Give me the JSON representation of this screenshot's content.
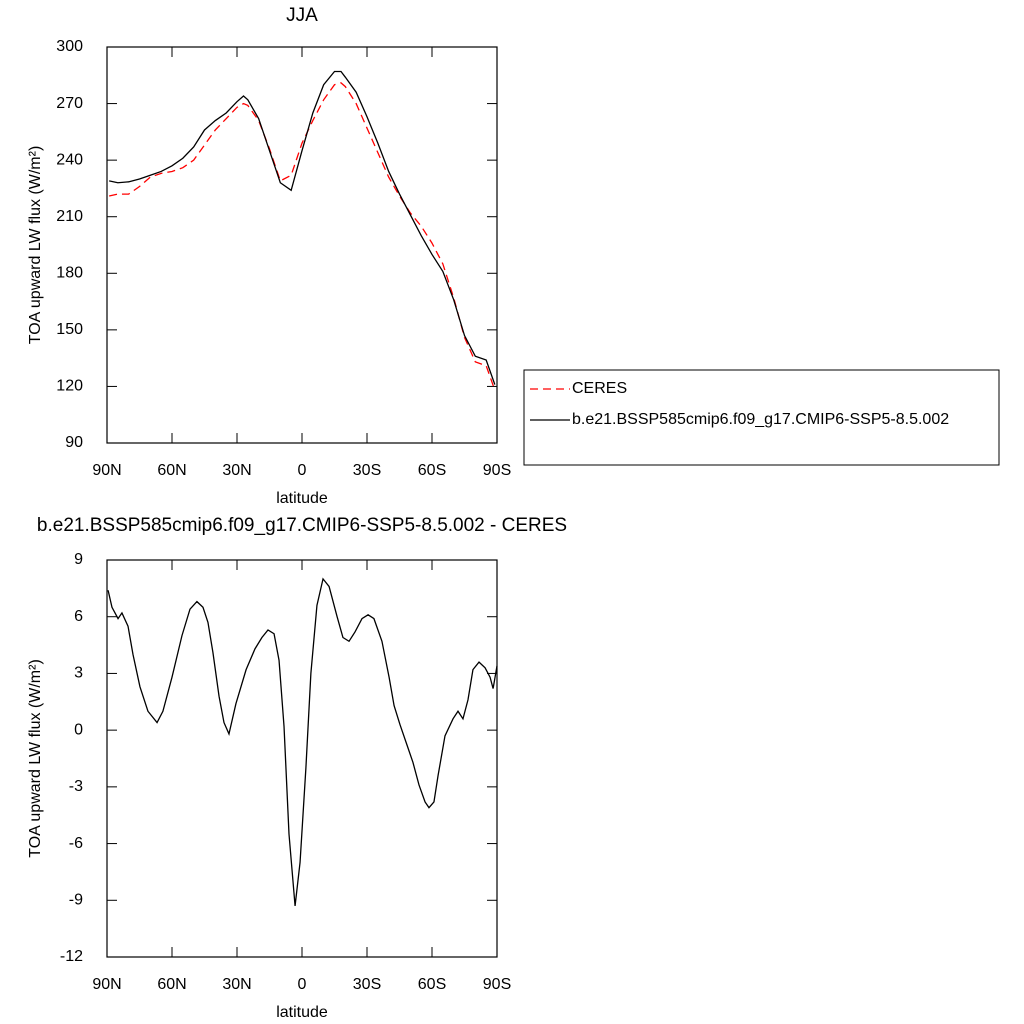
{
  "chart_data": [
    {
      "type": "line",
      "title": "JJA",
      "xlabel": "latitude",
      "ylabel": "TOA upward LW flux (W/m²)",
      "x": [
        89,
        85,
        80,
        75,
        70,
        65,
        60,
        55,
        50,
        45,
        40,
        35,
        30,
        27,
        25,
        20,
        15,
        10,
        5,
        0,
        -5,
        -10,
        -15,
        -18,
        -20,
        -25,
        -30,
        -35,
        -40,
        -45,
        -50,
        -55,
        -60,
        -65,
        -70,
        -75,
        -80,
        -85,
        -89
      ],
      "series": [
        {
          "name": "CERES",
          "color": "#ff0000",
          "dashed": true,
          "values": [
            221,
            222,
            222,
            226,
            231,
            233,
            234,
            236,
            240,
            248,
            256,
            262,
            268,
            270,
            269,
            261,
            246,
            229,
            232,
            249,
            261,
            272,
            280,
            281,
            279,
            270,
            257,
            244,
            231,
            221,
            212,
            205,
            196,
            185,
            167,
            146,
            133,
            131,
            118
          ]
        },
        {
          "name": "b.e21.BSSP585cmip6.f09_g17.CMIP6-SSP5-8.5.002",
          "color": "#000000",
          "dashed": false,
          "values": [
            229,
            228,
            228.5,
            230,
            232,
            234,
            237,
            241,
            247,
            256,
            261,
            265,
            271,
            274,
            272,
            262,
            245,
            228,
            224,
            245,
            265,
            280,
            287,
            287,
            284,
            276,
            263,
            249,
            234,
            222,
            211,
            200,
            190,
            181,
            166,
            147,
            136,
            134,
            121
          ]
        }
      ],
      "xlim": [
        90,
        -90
      ],
      "xticks": [
        {
          "value": 90,
          "label": "90N"
        },
        {
          "value": 60,
          "label": "60N"
        },
        {
          "value": 30,
          "label": "30N"
        },
        0,
        {
          "value": -30,
          "label": "30S"
        },
        {
          "value": -60,
          "label": "60S"
        },
        {
          "value": -90,
          "label": "90S"
        }
      ],
      "ylim": [
        90,
        300
      ],
      "yticks": [
        90,
        120,
        150,
        180,
        210,
        240,
        270,
        300
      ],
      "legend": "right"
    },
    {
      "type": "line",
      "title": "b.e21.BSSP585cmip6.f09_g17.CMIP6-SSP5-8.5.002 - CERES",
      "xlabel": "latitude",
      "ylabel": "TOA upward LW flux (W/m²)",
      "x": [
        89.5,
        87.7,
        84.9,
        83.1,
        80.3,
        78.0,
        74.8,
        71.1,
        66.9,
        64.2,
        60.0,
        55.4,
        51.7,
        48.5,
        45.7,
        43.4,
        41.1,
        38.3,
        36.0,
        33.7,
        30.5,
        25.8,
        21.7,
        18.5,
        15.7,
        12.9,
        10.6,
        8.3,
        6.0,
        3.2,
        0.9,
        -1.8,
        -4.1,
        -6.9,
        -9.7,
        -12.5,
        -16.2,
        -18.9,
        -21.7,
        -24.5,
        -27.7,
        -30.5,
        -33.2,
        -36.9,
        -40.2,
        -42.5,
        -45.2,
        -48.5,
        -51.2,
        -54.0,
        -56.8,
        -58.6,
        -60.9,
        -62.8,
        -66.0,
        -69.7,
        -72.0,
        -74.3,
        -76.6,
        -78.9,
        -81.7,
        -84.5,
        -86.8,
        -88.2,
        -90
      ],
      "values": [
        7.4,
        6.5,
        5.9,
        6.2,
        5.5,
        4.0,
        2.3,
        1.0,
        0.4,
        1.0,
        2.8,
        5.0,
        6.4,
        6.8,
        6.5,
        5.7,
        4.1,
        1.8,
        0.4,
        -0.2,
        1.4,
        3.2,
        4.3,
        4.9,
        5.3,
        5.1,
        3.7,
        0.2,
        -5.5,
        -9.3,
        -7.0,
        -2.0,
        3.0,
        6.6,
        8.0,
        7.6,
        6.0,
        4.9,
        4.7,
        5.2,
        5.9,
        6.1,
        5.9,
        4.7,
        2.8,
        1.3,
        0.3,
        -0.8,
        -1.7,
        -2.9,
        -3.8,
        -4.1,
        -3.8,
        -2.4,
        -0.3,
        0.6,
        1.0,
        0.6,
        1.6,
        3.2,
        3.6,
        3.3,
        2.8,
        2.2,
        3.4
      ],
      "color": "#000000",
      "xlim": [
        90,
        -90
      ],
      "xticks": [
        {
          "value": 90,
          "label": "90N"
        },
        {
          "value": 60,
          "label": "60N"
        },
        {
          "value": 30,
          "label": "30N"
        },
        0,
        {
          "value": -30,
          "label": "30S"
        },
        {
          "value": -60,
          "label": "60S"
        },
        {
          "value": -90,
          "label": "90S"
        }
      ],
      "ylim": [
        -12,
        9
      ],
      "yticks": [
        -12,
        -9,
        -6,
        -3,
        0,
        3,
        6,
        9
      ]
    }
  ]
}
